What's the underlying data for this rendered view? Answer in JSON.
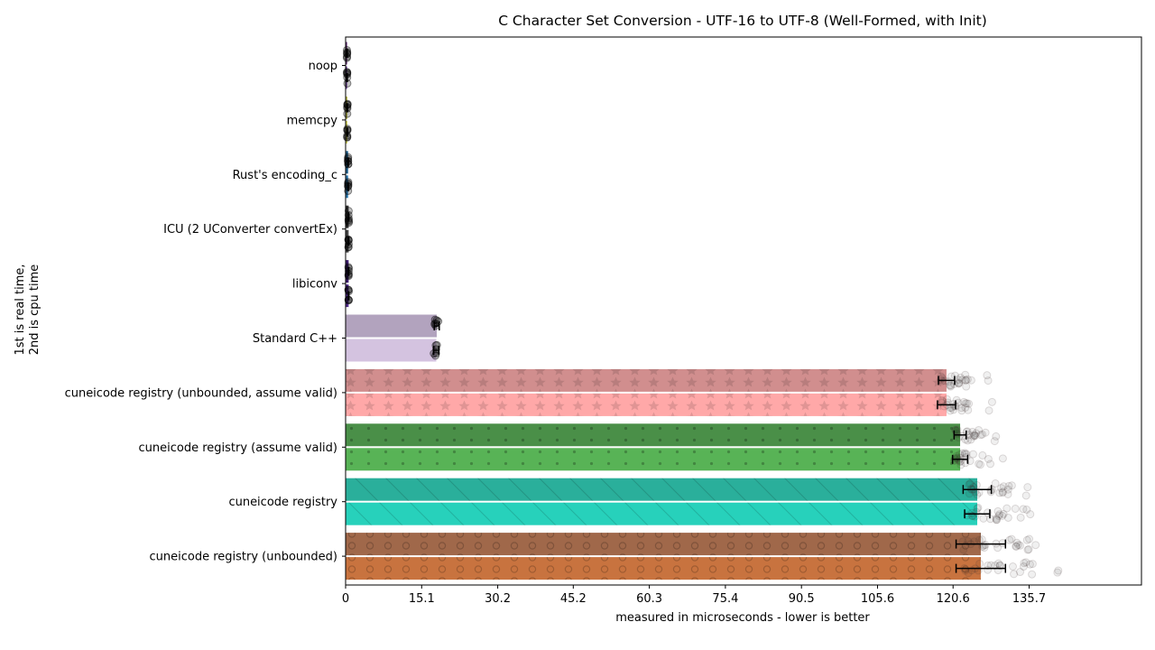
{
  "chart_data": {
    "type": "bar",
    "orientation": "horizontal",
    "title": "C Character Set Conversion - UTF-16 to UTF-8 (Well-Formed, with Init)",
    "xlabel": "measured in microseconds - lower is better",
    "ylabel_lines": [
      "1st is real time,",
      "2nd is cpu time"
    ],
    "xlim": [
      0,
      158
    ],
    "xticks": [
      "0",
      "15.1",
      "30.2",
      "45.2",
      "60.3",
      "75.4",
      "90.5",
      "105.6",
      "120.6",
      "135.7"
    ],
    "xtick_values": [
      0,
      15.1,
      30.2,
      45.2,
      60.3,
      75.4,
      90.5,
      105.6,
      120.6,
      135.7
    ],
    "grid": false,
    "legend": "none",
    "categories": [
      {
        "name": "noop",
        "colors": [
          "#5b2a6e",
          "#6a3d9a"
        ],
        "hatch": "none",
        "real": {
          "value": 0.3,
          "err": 0.05
        },
        "cpu": {
          "value": 0.3,
          "err": 0.05
        }
      },
      {
        "name": "memcpy",
        "colors": [
          "#b8b84a",
          "#d2d25a"
        ],
        "hatch": "none",
        "real": {
          "value": 0.35,
          "err": 0.05
        },
        "cpu": {
          "value": 0.35,
          "err": 0.05
        }
      },
      {
        "name": "Rust's encoding_c",
        "colors": [
          "#1f5f8b",
          "#2a78b0"
        ],
        "hatch": "none",
        "real": {
          "value": 0.5,
          "err": 0.05
        },
        "cpu": {
          "value": 0.5,
          "err": 0.05
        }
      },
      {
        "name": "ICU (2 UConverter convertEx)",
        "colors": [
          "#303030",
          "#444444"
        ],
        "hatch": "none",
        "real": {
          "value": 0.6,
          "err": 0.05
        },
        "cpu": {
          "value": 0.6,
          "err": 0.05
        }
      },
      {
        "name": "libiconv",
        "colors": [
          "#3b1a6b",
          "#4f2a8a"
        ],
        "hatch": "none",
        "real": {
          "value": 0.6,
          "err": 0.05
        },
        "cpu": {
          "value": 0.6,
          "err": 0.05
        }
      },
      {
        "name": "Standard C++",
        "colors": [
          "#b2a3be",
          "#d4c3e0"
        ],
        "hatch": "none",
        "real": {
          "value": 18.1,
          "err": 0.5
        },
        "cpu": {
          "value": 18.0,
          "err": 0.5
        }
      },
      {
        "name": "cuneicode registry (unbounded, assume valid)",
        "colors": [
          "#d18e8e",
          "#ffa8a8"
        ],
        "hatch": "stars",
        "real": {
          "value": 119.3,
          "err": 1.6
        },
        "cpu": {
          "value": 119.3,
          "err": 1.8
        }
      },
      {
        "name": "cuneicode registry (assume valid)",
        "colors": [
          "#4a8f48",
          "#58b356"
        ],
        "hatch": "dots",
        "real": {
          "value": 122.0,
          "err": 1.2
        },
        "cpu": {
          "value": 122.0,
          "err": 1.5
        }
      },
      {
        "name": "cuneicode registry",
        "colors": [
          "#2aaf9b",
          "#27d1bb"
        ],
        "hatch": "diagonal",
        "real": {
          "value": 125.4,
          "err": 2.8
        },
        "cpu": {
          "value": 125.4,
          "err": 2.5
        }
      },
      {
        "name": "cuneicode registry (unbounded)",
        "colors": [
          "#a0684a",
          "#c8733f"
        ],
        "hatch": "circles",
        "real": {
          "value": 126.1,
          "err": 4.9
        },
        "cpu": {
          "value": 126.1,
          "err": 4.9
        }
      }
    ]
  }
}
